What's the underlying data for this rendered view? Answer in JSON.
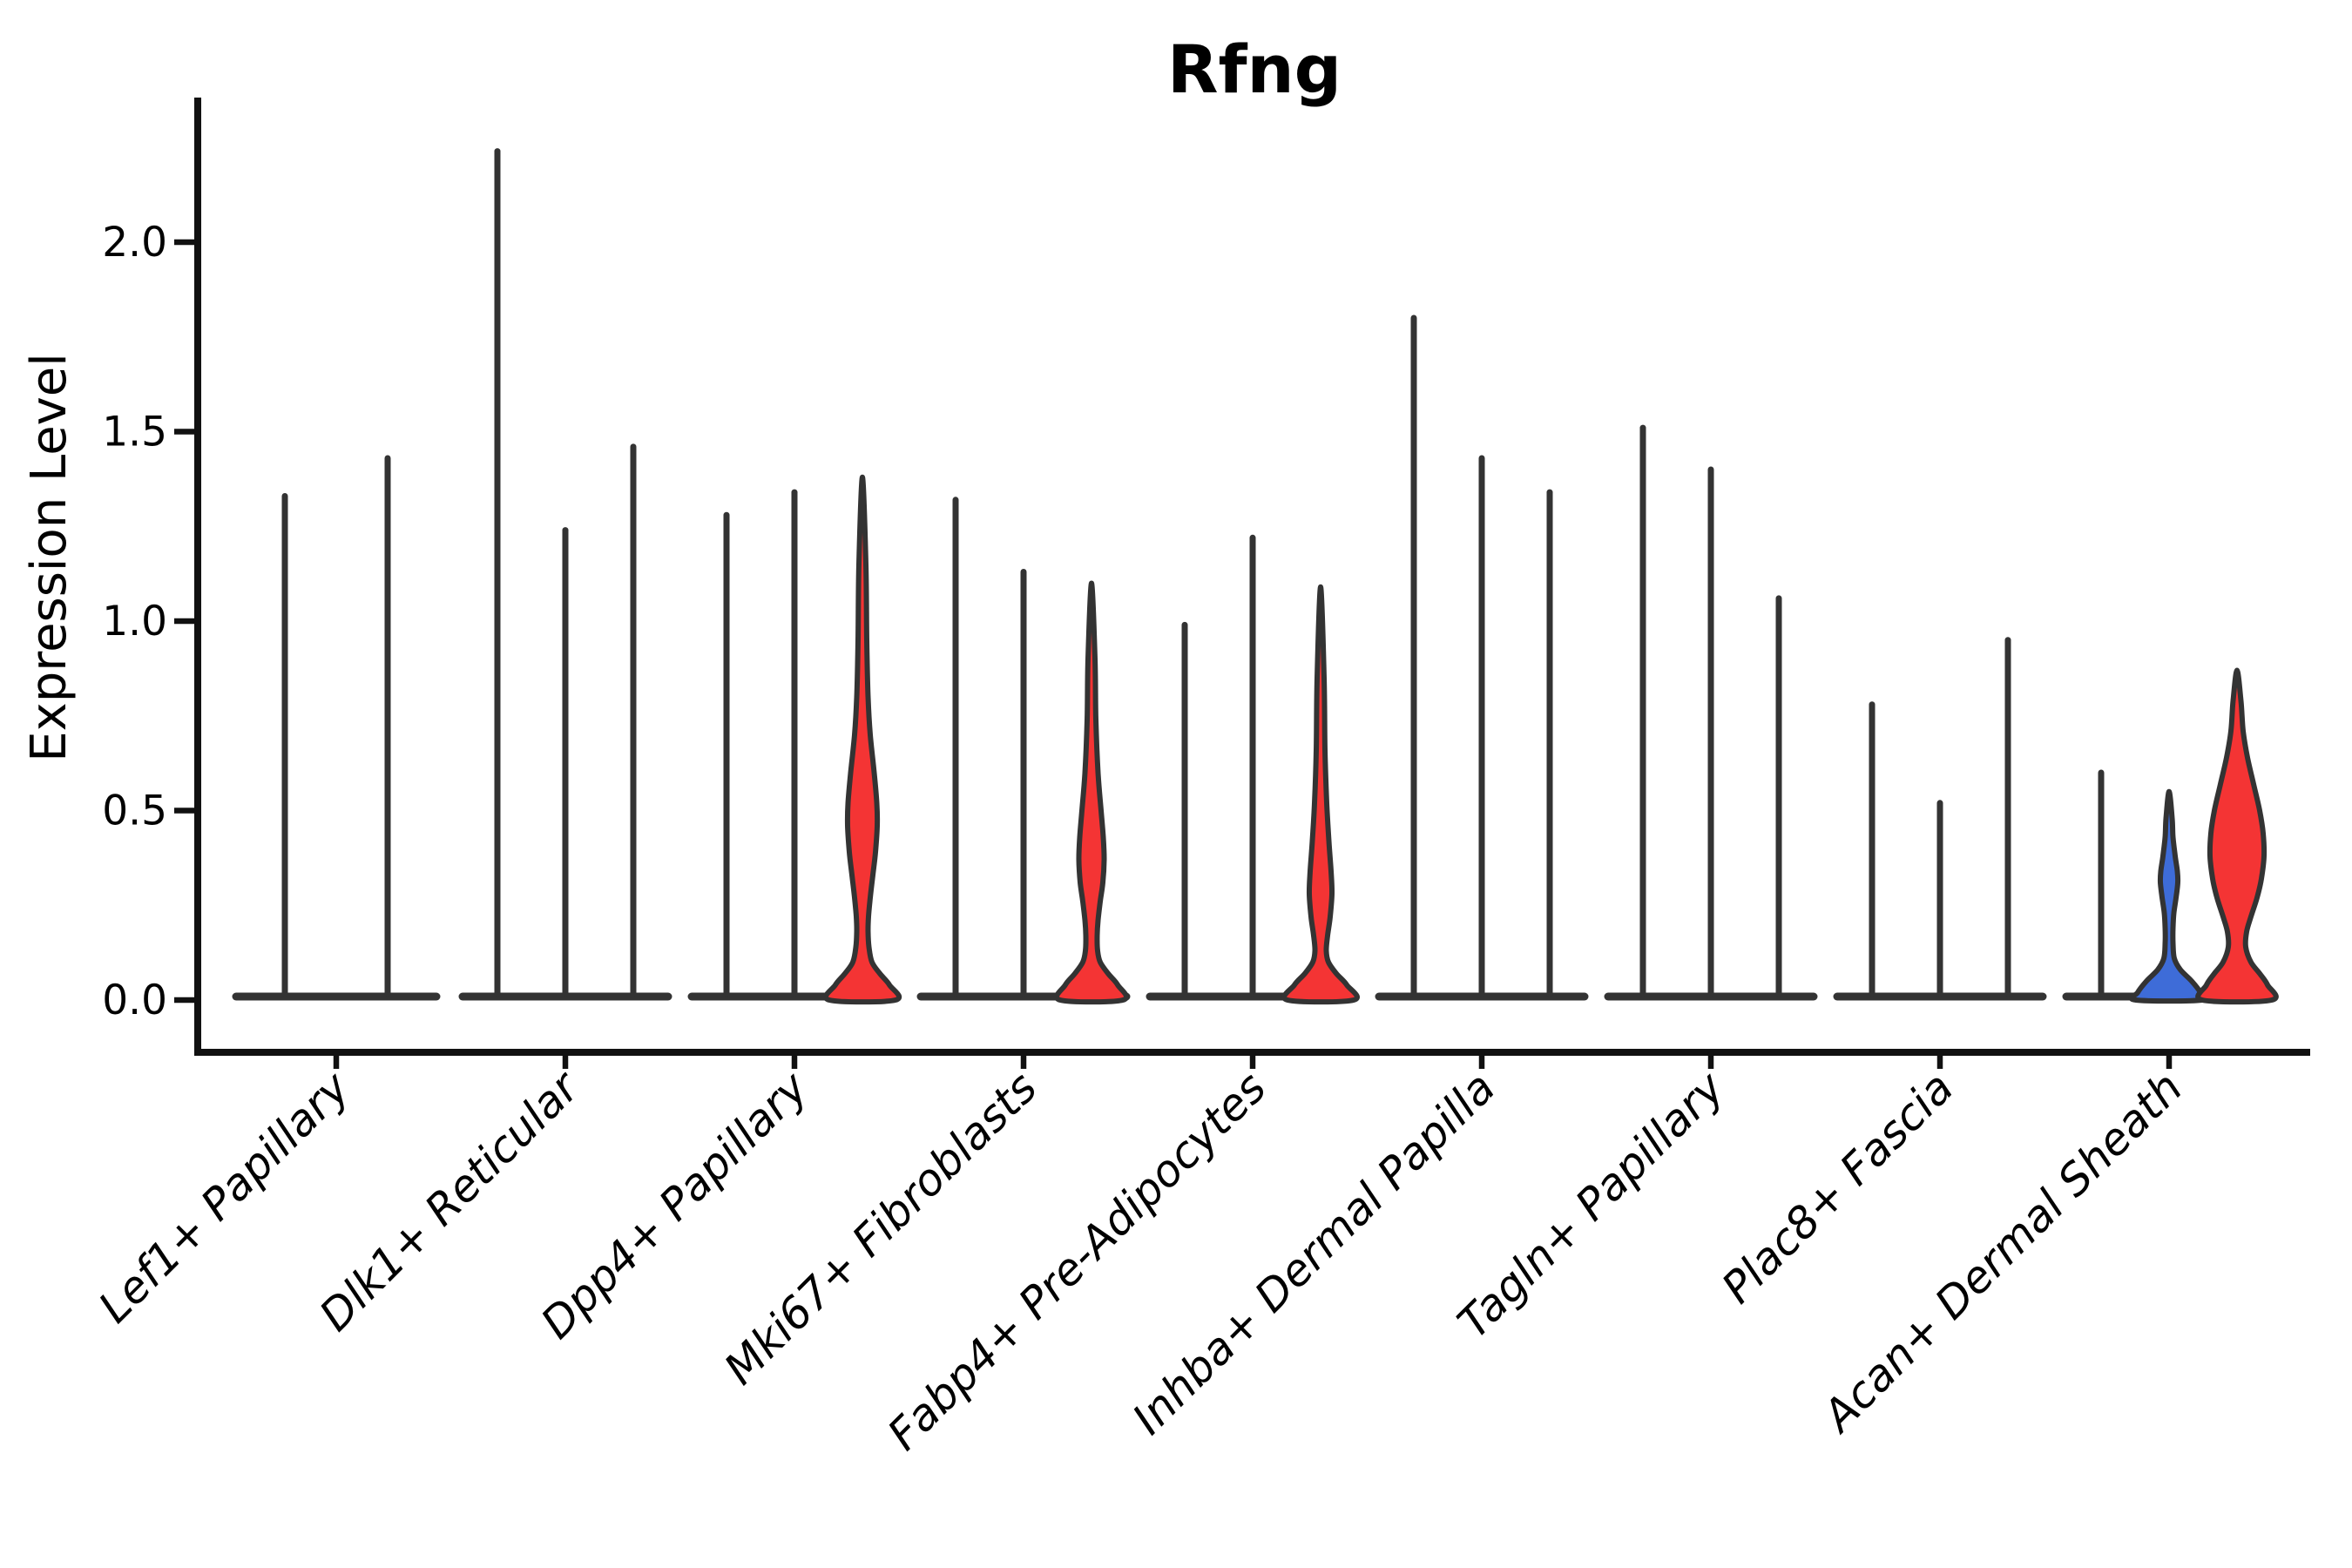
{
  "chart_data": {
    "type": "violin",
    "title": "Rfng",
    "ylabel": "Expression Level",
    "xlabel": "",
    "yticks": [
      {
        "label": "0.0",
        "value": 0.0
      },
      {
        "label": "0.5",
        "value": 0.5
      },
      {
        "label": "1.0",
        "value": 1.0
      },
      {
        "label": "1.5",
        "value": 1.5
      },
      {
        "label": "2.0",
        "value": 2.0
      }
    ],
    "ylim": [
      -0.15,
      2.38
    ],
    "grid": false,
    "legend_position": "none",
    "colors": {
      "highlight_red": "#F43434",
      "highlight_blue": "#3E6CD8",
      "violin_outline": "#333333",
      "axis": "#111111",
      "text": "#000000",
      "background": "#ffffff"
    },
    "groups": [
      {
        "label": "Lef1+ Papillary",
        "violins": [
          {
            "max": 1.33,
            "style": "line"
          },
          {
            "max": 1.43,
            "style": "line"
          }
        ]
      },
      {
        "label": "Dlk1+ Reticular",
        "violins": [
          {
            "max": 2.24,
            "style": "line"
          },
          {
            "max": 1.24,
            "style": "line"
          },
          {
            "max": 1.46,
            "style": "line"
          }
        ]
      },
      {
        "label": "Dpp4+ Papillary",
        "violins": [
          {
            "max": 1.28,
            "style": "line"
          },
          {
            "max": 1.34,
            "style": "line"
          },
          {
            "max": 1.38,
            "style": "red",
            "profile": [
              [
                1.38,
                3.5
              ],
              [
                1.15,
                4
              ],
              [
                0.95,
                5
              ],
              [
                0.8,
                6.5
              ],
              [
                0.7,
                9
              ],
              [
                0.6,
                13.5
              ],
              [
                0.52,
                16.5
              ],
              [
                0.46,
                17
              ],
              [
                0.39,
                15
              ],
              [
                0.33,
                12
              ],
              [
                0.27,
                9
              ],
              [
                0.22,
                7
              ],
              [
                0.18,
                6.5
              ],
              [
                0.14,
                7.5
              ],
              [
                0.1,
                11
              ],
              [
                0.07,
                20
              ],
              [
                0.04,
                31
              ],
              [
                0,
                38
              ]
            ]
          }
        ]
      },
      {
        "label": "Mki67+ Fibroblasts",
        "violins": [
          {
            "max": 1.32,
            "style": "line"
          },
          {
            "max": 1.13,
            "style": "line"
          },
          {
            "max": 1.1,
            "style": "red",
            "profile": [
              [
                1.1,
                3.5
              ],
              [
                0.9,
                4
              ],
              [
                0.74,
                5
              ],
              [
                0.6,
                7.5
              ],
              [
                0.5,
                11
              ],
              [
                0.43,
                13.5
              ],
              [
                0.37,
                14.5
              ],
              [
                0.31,
                13
              ],
              [
                0.26,
                10
              ],
              [
                0.21,
                7.5
              ],
              [
                0.17,
                6.5
              ],
              [
                0.13,
                7
              ],
              [
                0.1,
                10
              ],
              [
                0.07,
                19
              ],
              [
                0.04,
                30
              ],
              [
                0,
                36
              ]
            ]
          }
        ]
      },
      {
        "label": "Fabp4+ Pre-Adipocytes",
        "violins": [
          {
            "max": 0.99,
            "style": "line"
          },
          {
            "max": 1.22,
            "style": "line"
          },
          {
            "max": 1.09,
            "style": "red",
            "profile": [
              [
                1.09,
                3.5
              ],
              [
                0.85,
                4
              ],
              [
                0.66,
                5
              ],
              [
                0.52,
                7
              ],
              [
                0.42,
                9.5
              ],
              [
                0.34,
                12
              ],
              [
                0.28,
                13
              ],
              [
                0.22,
                11
              ],
              [
                0.17,
                8
              ],
              [
                0.13,
                6.5
              ],
              [
                0.1,
                9
              ],
              [
                0.07,
                18
              ],
              [
                0.04,
                30
              ],
              [
                0,
                38
              ]
            ]
          }
        ]
      },
      {
        "label": "Inhba+ Dermal Papilla",
        "violins": [
          {
            "max": 1.8,
            "style": "line"
          },
          {
            "max": 1.43,
            "style": "line"
          },
          {
            "max": 1.34,
            "style": "line"
          }
        ]
      },
      {
        "label": "Tagln+ Papillary",
        "violins": [
          {
            "max": 1.51,
            "style": "line"
          },
          {
            "max": 1.4,
            "style": "line"
          },
          {
            "max": 1.06,
            "style": "line"
          }
        ]
      },
      {
        "label": "Plac8+ Fascia",
        "violins": [
          {
            "max": 0.78,
            "style": "line"
          },
          {
            "max": 0.52,
            "style": "line"
          },
          {
            "max": 0.95,
            "style": "line"
          }
        ]
      },
      {
        "label": "Acan+ Dermal Sheath",
        "violins": [
          {
            "max": 0.6,
            "style": "line"
          },
          {
            "max": 0.55,
            "style": "blue",
            "profile": [
              [
                0.55,
                3
              ],
              [
                0.48,
                3.5
              ],
              [
                0.43,
                4.5
              ],
              [
                0.38,
                7
              ],
              [
                0.34,
                9.5
              ],
              [
                0.31,
                10
              ],
              [
                0.27,
                8
              ],
              [
                0.23,
                5.5
              ],
              [
                0.19,
                4.5
              ],
              [
                0.15,
                4.5
              ],
              [
                0.11,
                6
              ],
              [
                0.08,
                13
              ],
              [
                0.05,
                26
              ],
              [
                0.02,
                36
              ],
              [
                0,
                38
              ]
            ]
          },
          {
            "max": 0.87,
            "style": "red",
            "profile": [
              [
                0.87,
                3.5
              ],
              [
                0.79,
                4.5
              ],
              [
                0.71,
                7
              ],
              [
                0.64,
                12
              ],
              [
                0.57,
                19
              ],
              [
                0.5,
                26
              ],
              [
                0.44,
                30
              ],
              [
                0.38,
                31
              ],
              [
                0.32,
                28
              ],
              [
                0.27,
                23
              ],
              [
                0.22,
                16
              ],
              [
                0.18,
                11
              ],
              [
                0.14,
                10
              ],
              [
                0.1,
                16
              ],
              [
                0.07,
                26
              ],
              [
                0.04,
                35
              ],
              [
                0,
                40
              ]
            ]
          }
        ]
      }
    ]
  }
}
